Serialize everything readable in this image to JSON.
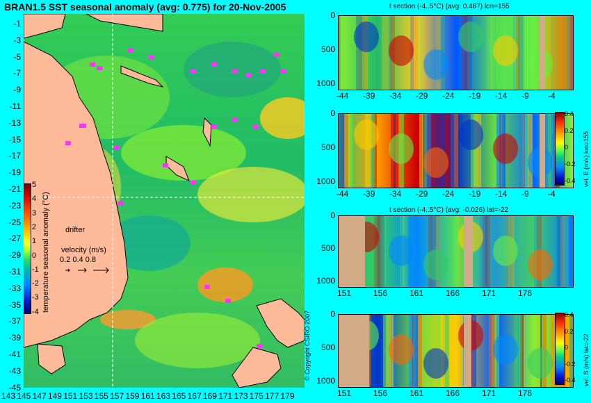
{
  "title": "BRAN1.5 SST seasonal anomaly (avg: 0.775) for 20-Nov-2005",
  "map": {
    "lat_labels": [
      "-1",
      "-3",
      "-5",
      "-7",
      "-9",
      "-11",
      "-13",
      "-15",
      "-17",
      "-19",
      "-21",
      "-23",
      "-25",
      "-27",
      "-29",
      "-31",
      "-33",
      "-35",
      "-37",
      "-39",
      "-41",
      "-43",
      "-45"
    ],
    "lon_labels": [
      "143",
      "145",
      "147",
      "149",
      "151",
      "153",
      "155",
      "157",
      "159",
      "161",
      "163",
      "165",
      "167",
      "169",
      "171",
      "173",
      "175",
      "177",
      "179"
    ],
    "colorbar": {
      "ticks": [
        "5",
        "4",
        "3",
        "2",
        "1",
        "0",
        "-1",
        "-2",
        "-3",
        "-4"
      ],
      "label": "temperature seasonal anomaly (°C)"
    },
    "drifter_label": "drifter",
    "velocity_label": "velocity (m/s)",
    "velocity_scale": "0.2 0.4 0.8"
  },
  "panels": [
    {
      "title": "t section (-4..5°C) (avg: 0.487) lon=155",
      "y_ticks": [
        "0",
        "500",
        "1000"
      ],
      "x_ticks": [
        "-44",
        "-39",
        "-34",
        "-29",
        "-24",
        "-19",
        "-14",
        "-9",
        "-4"
      ],
      "side_label": "",
      "cbar_ticks": []
    },
    {
      "title": "",
      "y_ticks": [
        "0",
        "500",
        "1000"
      ],
      "x_ticks": [
        "-44",
        "-39",
        "-34",
        "-29",
        "-24",
        "-19",
        "-14",
        "-9",
        "-4"
      ],
      "side_label": "vel. E (m/s) lon=155",
      "cbar_ticks": [
        "0.4",
        "0.2",
        "0",
        "-0.2",
        "-0.4"
      ]
    },
    {
      "title": "t section (-4..5°C) (avg: -0.026) lat=-22",
      "y_ticks": [
        "0",
        "500",
        "1000"
      ],
      "x_ticks": [
        "151",
        "156",
        "161",
        "166",
        "171",
        "176"
      ],
      "side_label": "",
      "cbar_ticks": []
    },
    {
      "title": "",
      "y_ticks": [
        "0",
        "500",
        "1000"
      ],
      "x_ticks": [
        "151",
        "156",
        "161",
        "166",
        "171",
        "176"
      ],
      "side_label": "vel. S (m/s) lat=-22",
      "cbar_ticks": [
        "0.4",
        "0.2",
        "0",
        "-0.2",
        "-0.4"
      ]
    }
  ],
  "copyright": "© Copyright CSIRO 2007",
  "colors": {
    "background": "#00ffff",
    "land": "#d2aa88",
    "ocean_base": "#33cc55",
    "drifter": "#ff33ff"
  }
}
